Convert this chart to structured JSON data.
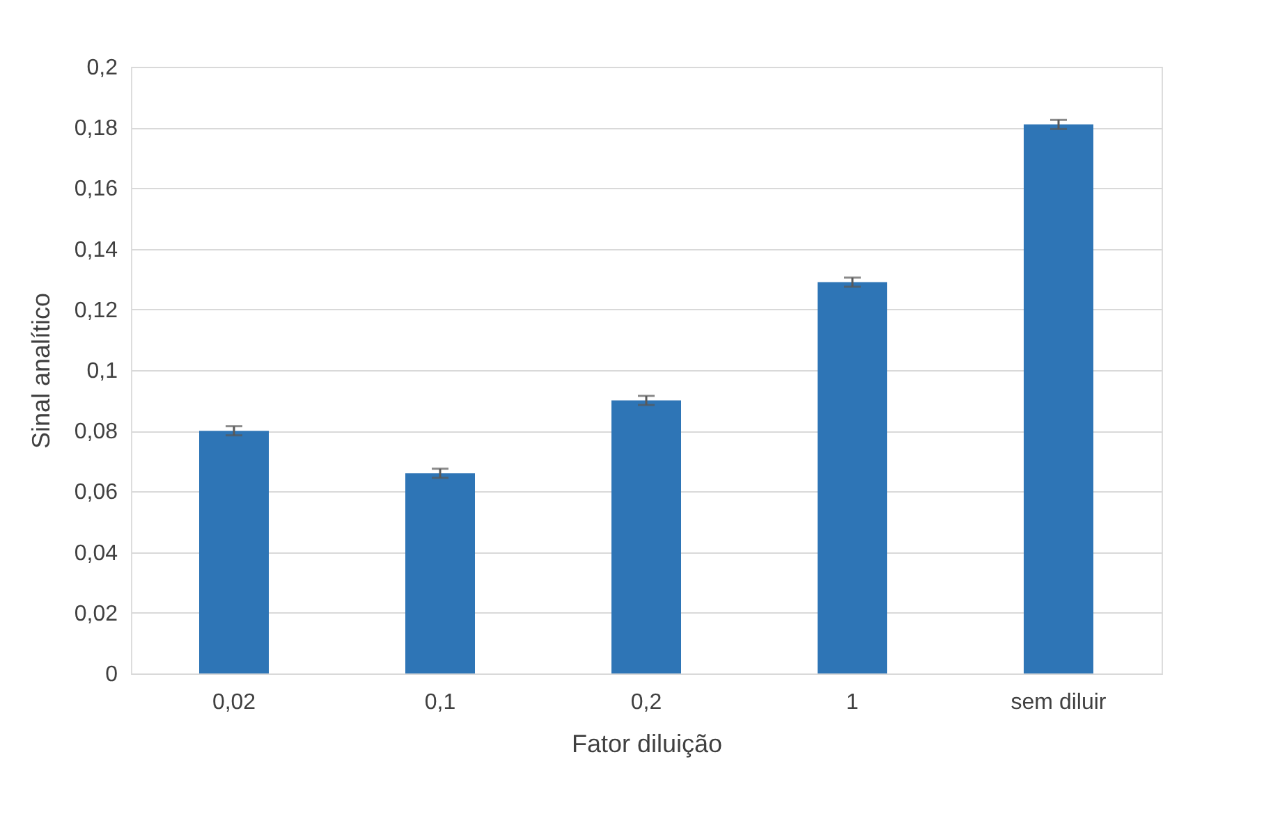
{
  "chart_data": {
    "type": "bar",
    "xlabel": "Fator diluição",
    "ylabel": "Sinal analítico",
    "categories": [
      "0,02",
      "0,1",
      "0,2",
      "1",
      "sem diluir"
    ],
    "values": [
      0.08,
      0.066,
      0.09,
      0.129,
      0.181
    ],
    "errors": [
      0.0015,
      0.0015,
      0.0015,
      0.0015,
      0.0015
    ],
    "color": "#2e75b6",
    "ylim": [
      0,
      0.2
    ],
    "yticks": [
      {
        "value": 0,
        "label": "0"
      },
      {
        "value": 0.02,
        "label": "0,02"
      },
      {
        "value": 0.04,
        "label": "0,04"
      },
      {
        "value": 0.06,
        "label": "0,06"
      },
      {
        "value": 0.08,
        "label": "0,08"
      },
      {
        "value": 0.1,
        "label": "0,1"
      },
      {
        "value": 0.12,
        "label": "0,12"
      },
      {
        "value": 0.14,
        "label": "0,14"
      },
      {
        "value": 0.16,
        "label": "0,16"
      },
      {
        "value": 0.18,
        "label": "0,18"
      },
      {
        "value": 0.2,
        "label": "0,2"
      }
    ],
    "grid": "y"
  }
}
